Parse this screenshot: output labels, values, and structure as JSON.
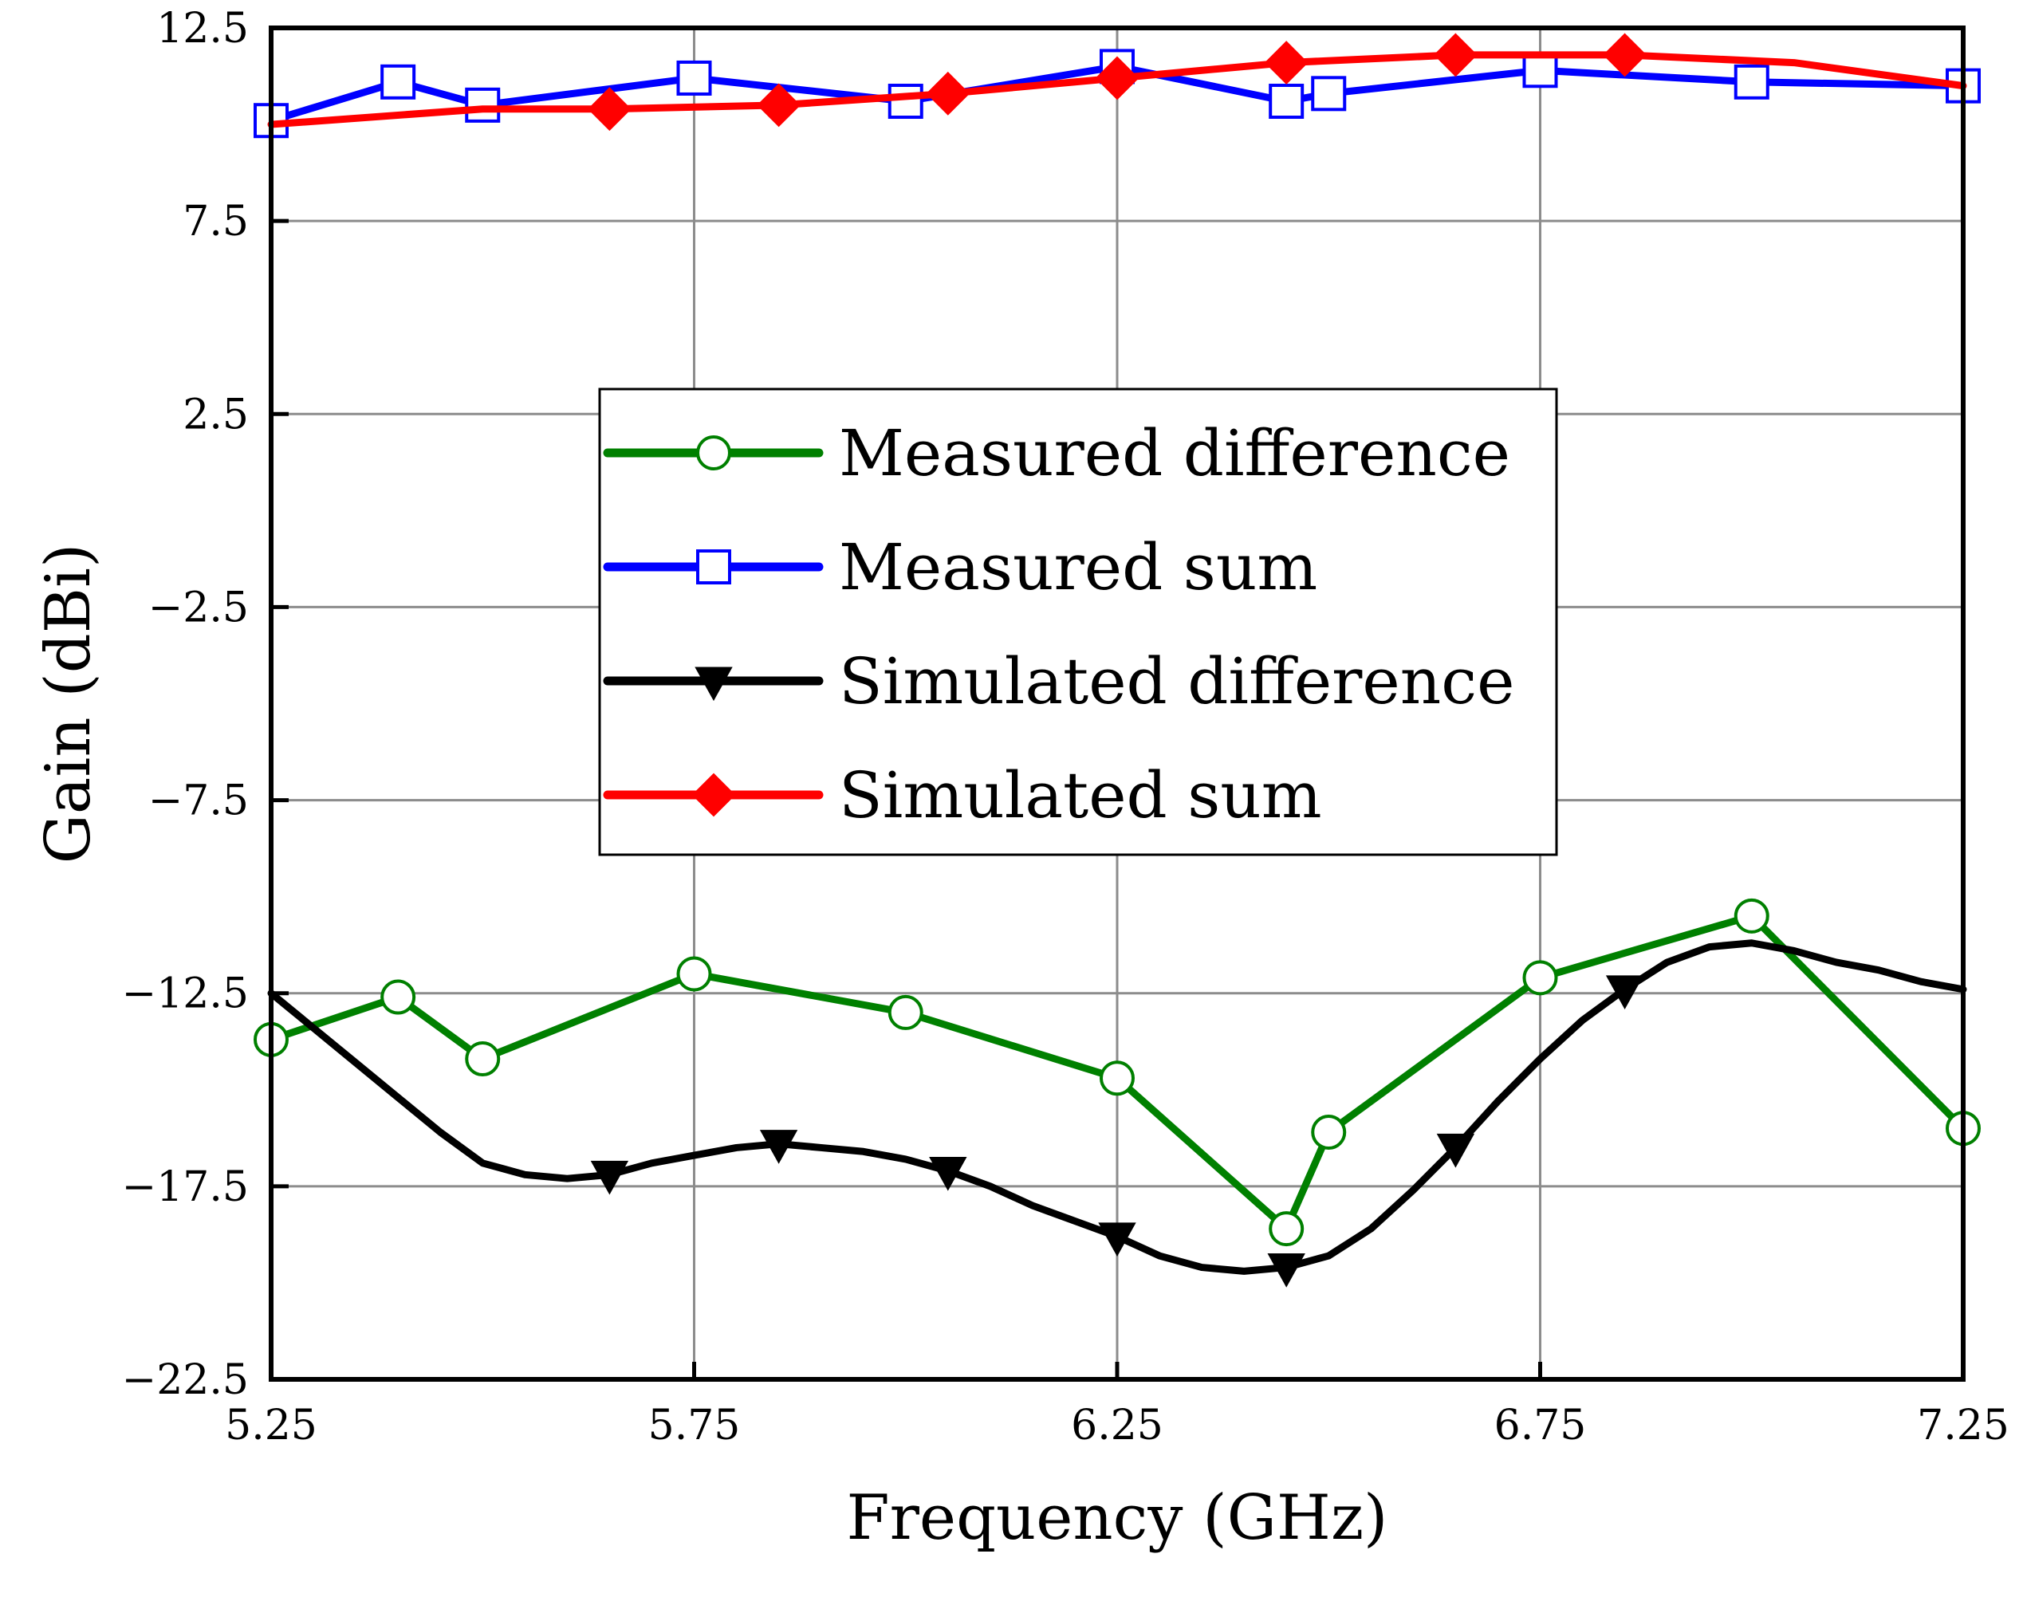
{
  "chart_data": {
    "type": "line",
    "title": "",
    "xlabel": "Frequency (GHz)",
    "ylabel": "Gain (dBi)",
    "xlim": [
      5.25,
      7.25
    ],
    "ylim": [
      -22.5,
      12.5
    ],
    "xticks": [
      5.25,
      5.75,
      6.25,
      6.75,
      7.25
    ],
    "xtick_labels": [
      "5.25",
      "5.75",
      "6.25",
      "6.75",
      "7.25"
    ],
    "yticks": [
      12.5,
      7.5,
      2.5,
      -2.5,
      -7.5,
      -12.5,
      -17.5,
      -22.5
    ],
    "ytick_labels": [
      "12.5",
      "7.5",
      "2.5",
      "−2.5",
      "−7.5",
      "−12.5",
      "−17.5",
      "−22.5"
    ],
    "grid": true,
    "legend_position": "center",
    "series": [
      {
        "name": "Measured difference",
        "color": "#008000",
        "marker": "circle-open",
        "x": [
          5.25,
          5.4,
          5.5,
          5.75,
          6.0,
          6.25,
          6.45,
          6.5,
          6.75,
          7.0,
          7.25
        ],
        "y": [
          -13.7,
          -12.6,
          -14.2,
          -12.0,
          -13.0,
          -14.7,
          -18.6,
          -16.1,
          -12.1,
          -10.5,
          -16.0
        ]
      },
      {
        "name": "Measured sum",
        "color": "#0000ff",
        "marker": "square-open",
        "x": [
          5.25,
          5.4,
          5.5,
          5.75,
          6.0,
          6.25,
          6.45,
          6.5,
          6.75,
          7.0,
          7.25
        ],
        "y": [
          10.1,
          11.1,
          10.5,
          11.2,
          10.6,
          11.5,
          10.6,
          10.8,
          11.4,
          11.1,
          11.0
        ]
      },
      {
        "name": "Simulated difference",
        "color": "#000000",
        "marker": "triangle-down",
        "x": [
          5.25,
          5.3,
          5.35,
          5.4,
          5.45,
          5.5,
          5.55,
          5.6,
          5.65,
          5.7,
          5.75,
          5.8,
          5.85,
          5.9,
          5.95,
          6.0,
          6.05,
          6.1,
          6.15,
          6.2,
          6.25,
          6.3,
          6.35,
          6.4,
          6.45,
          6.5,
          6.55,
          6.6,
          6.65,
          6.7,
          6.75,
          6.8,
          6.85,
          6.9,
          6.95,
          7.0,
          7.05,
          7.1,
          7.15,
          7.2,
          7.25
        ],
        "y": [
          -12.5,
          -13.4,
          -14.3,
          -15.2,
          -16.1,
          -16.9,
          -17.2,
          -17.3,
          -17.2,
          -16.9,
          -16.7,
          -16.5,
          -16.4,
          -16.5,
          -16.6,
          -16.8,
          -17.1,
          -17.5,
          -18.0,
          -18.4,
          -18.8,
          -19.3,
          -19.6,
          -19.7,
          -19.6,
          -19.3,
          -18.6,
          -17.6,
          -16.5,
          -15.3,
          -14.2,
          -13.2,
          -12.4,
          -11.7,
          -11.3,
          -11.2,
          -11.4,
          -11.7,
          -11.9,
          -12.2,
          -12.4
        ],
        "marker_x": [
          5.65,
          5.85,
          6.05,
          6.25,
          6.45,
          6.65,
          6.85
        ],
        "marker_y": [
          -17.2,
          -16.4,
          -17.1,
          -18.8,
          -19.6,
          -16.5,
          -12.4
        ]
      },
      {
        "name": "Simulated sum",
        "color": "#ff0000",
        "marker": "diamond-filled",
        "x": [
          5.25,
          5.5,
          5.65,
          5.85,
          6.05,
          6.25,
          6.45,
          6.65,
          6.85,
          7.05,
          7.25
        ],
        "y": [
          10.0,
          10.4,
          10.4,
          10.5,
          10.8,
          11.2,
          11.6,
          11.8,
          11.8,
          11.6,
          11.0
        ],
        "marker_x": [
          5.65,
          5.85,
          6.05,
          6.25,
          6.45,
          6.65,
          6.85
        ],
        "marker_y": [
          10.4,
          10.5,
          10.8,
          11.2,
          11.6,
          11.8,
          11.8
        ]
      }
    ]
  }
}
